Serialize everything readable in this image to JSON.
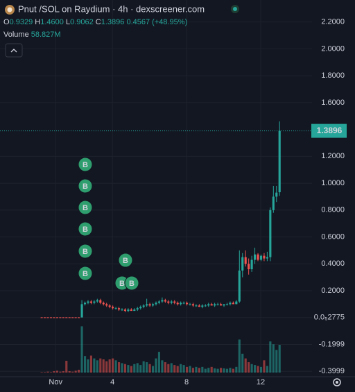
{
  "chart_data": {
    "type": "candlestick",
    "title": "Pnut /SOL on Raydium · 4h · dexscreener.com",
    "ohlc": [
      {
        "key": "O",
        "text": "0.9329"
      },
      {
        "key": "H",
        "text": "1.4600"
      },
      {
        "key": "L",
        "text": "0.9062"
      },
      {
        "key": "C",
        "text": "1.3896"
      }
    ],
    "change": "0.4567 (+48.95%)",
    "volume_title": "Volume",
    "volume_text": "58.827M",
    "marker_label": "B",
    "up_color": "#26a69a",
    "down_color": "#ef5350",
    "grid": true,
    "ylim": [
      -0.44,
      2.26
    ],
    "yticks": [
      {
        "value": 2.2,
        "label": "2.2000"
      },
      {
        "value": 2.0,
        "label": "2.0000"
      },
      {
        "value": 1.8,
        "label": "1.8000"
      },
      {
        "value": 1.6,
        "label": "1.6000"
      },
      {
        "value": 1.2,
        "label": "1.2000"
      },
      {
        "value": 1.0,
        "label": "1.0000"
      },
      {
        "value": 0.8,
        "label": "0.8000"
      },
      {
        "value": 0.6,
        "label": "0.6000"
      },
      {
        "value": 0.4,
        "label": "0.4000"
      },
      {
        "value": 0.2,
        "label": "0.2000"
      },
      {
        "value": 2.775e-06,
        "label": "0.0₅2775"
      },
      -0.1999,
      -0.3999
    ],
    "xlim": [
      -13.5,
      87.5
    ],
    "xticks": [
      {
        "value": 4.5,
        "label": "Nov"
      },
      {
        "value": 22.9,
        "label": "4"
      },
      {
        "value": 46.9,
        "label": "8"
      },
      {
        "value": 70.9,
        "label": "12"
      }
    ],
    "volume_lim": [
      0,
      150
    ],
    "candles": [
      [
        0.002,
        0.002,
        0.001,
        0.001
      ],
      [
        0.002,
        0.002,
        0.001,
        0.001
      ],
      [
        0.002,
        0.002,
        0.001,
        0.001
      ],
      [
        0.002,
        0.002,
        0.001,
        0.001
      ],
      [
        0.002,
        0.002,
        0.001,
        0.001
      ],
      [
        0.002,
        0.002,
        0.001,
        0.001
      ],
      [
        0.002,
        0.002,
        0.001,
        0.001
      ],
      [
        0.002,
        0.002,
        0.001,
        0.001
      ],
      [
        0.002,
        0.002,
        0.001,
        0.001
      ],
      [
        0.002,
        0.002,
        0.001,
        0.001
      ],
      [
        0.002,
        0.002,
        0.001,
        0.001
      ],
      [
        0.002,
        0.002,
        0.001,
        0.001
      ],
      [
        0.002,
        0.002,
        0.001,
        0.001
      ],
      [
        0.001,
        0.13,
        0.001,
        0.1
      ],
      [
        0.1,
        0.12,
        0.09,
        0.11
      ],
      [
        0.11,
        0.13,
        0.1,
        0.12
      ],
      [
        0.12,
        0.13,
        0.1,
        0.11
      ],
      [
        0.11,
        0.13,
        0.1,
        0.12
      ],
      [
        0.12,
        0.14,
        0.11,
        0.13
      ],
      [
        0.13,
        0.14,
        0.1,
        0.11
      ],
      [
        0.11,
        0.12,
        0.09,
        0.1
      ],
      [
        0.1,
        0.11,
        0.08,
        0.09
      ],
      [
        0.09,
        0.1,
        0.07,
        0.08
      ],
      [
        0.08,
        0.09,
        0.06,
        0.07
      ],
      [
        0.07,
        0.08,
        0.06,
        0.07
      ],
      [
        0.07,
        0.08,
        0.05,
        0.06
      ],
      [
        0.06,
        0.07,
        0.05,
        0.06
      ],
      [
        0.06,
        0.07,
        0.04,
        0.05
      ],
      [
        0.05,
        0.07,
        0.04,
        0.06
      ],
      [
        0.06,
        0.07,
        0.05,
        0.05
      ],
      [
        0.05,
        0.07,
        0.05,
        0.06
      ],
      [
        0.06,
        0.08,
        0.05,
        0.07
      ],
      [
        0.07,
        0.09,
        0.06,
        0.08
      ],
      [
        0.08,
        0.1,
        0.07,
        0.09
      ],
      [
        0.09,
        0.14,
        0.08,
        0.1
      ],
      [
        0.1,
        0.11,
        0.08,
        0.09
      ],
      [
        0.09,
        0.11,
        0.08,
        0.1
      ],
      [
        0.1,
        0.12,
        0.09,
        0.11
      ],
      [
        0.11,
        0.13,
        0.1,
        0.12
      ],
      [
        0.12,
        0.15,
        0.11,
        0.13
      ],
      [
        0.13,
        0.14,
        0.11,
        0.12
      ],
      [
        0.12,
        0.13,
        0.1,
        0.11
      ],
      [
        0.11,
        0.13,
        0.1,
        0.12
      ],
      [
        0.12,
        0.13,
        0.1,
        0.11
      ],
      [
        0.11,
        0.12,
        0.09,
        0.1
      ],
      [
        0.1,
        0.12,
        0.09,
        0.11
      ],
      [
        0.11,
        0.12,
        0.1,
        0.11
      ],
      [
        0.11,
        0.12,
        0.09,
        0.1
      ],
      [
        0.1,
        0.11,
        0.09,
        0.1
      ],
      [
        0.1,
        0.11,
        0.08,
        0.09
      ],
      [
        0.09,
        0.1,
        0.08,
        0.09
      ],
      [
        0.09,
        0.1,
        0.08,
        0.08
      ],
      [
        0.08,
        0.1,
        0.07,
        0.09
      ],
      [
        0.09,
        0.1,
        0.08,
        0.09
      ],
      [
        0.09,
        0.11,
        0.08,
        0.1
      ],
      [
        0.1,
        0.11,
        0.09,
        0.09
      ],
      [
        0.09,
        0.11,
        0.08,
        0.1
      ],
      [
        0.1,
        0.11,
        0.09,
        0.1
      ],
      [
        0.1,
        0.11,
        0.09,
        0.09
      ],
      [
        0.09,
        0.1,
        0.08,
        0.1
      ],
      [
        0.1,
        0.11,
        0.09,
        0.1
      ],
      [
        0.1,
        0.12,
        0.09,
        0.11
      ],
      [
        0.11,
        0.12,
        0.1,
        0.1
      ],
      [
        0.1,
        0.13,
        0.1,
        0.12
      ],
      [
        0.12,
        0.5,
        0.11,
        0.35
      ],
      [
        0.35,
        0.48,
        0.3,
        0.45
      ],
      [
        0.45,
        0.5,
        0.38,
        0.4
      ],
      [
        0.4,
        0.44,
        0.32,
        0.36
      ],
      [
        0.36,
        0.46,
        0.34,
        0.43
      ],
      [
        0.43,
        0.52,
        0.4,
        0.47
      ],
      [
        0.47,
        0.48,
        0.42,
        0.43
      ],
      [
        0.43,
        0.47,
        0.42,
        0.46
      ],
      [
        0.46,
        0.48,
        0.42,
        0.44
      ],
      [
        0.44,
        0.49,
        0.42,
        0.45
      ],
      [
        0.45,
        0.82,
        0.42,
        0.8
      ],
      [
        0.8,
        0.98,
        0.78,
        0.9
      ],
      [
        0.9,
        0.98,
        0.86,
        0.93
      ],
      [
        0.9329,
        1.46,
        0.9062,
        1.3896
      ]
    ],
    "volumes": [
      1,
      1,
      2,
      1,
      3,
      4,
      2,
      3,
      25,
      3,
      2,
      4,
      6,
      98,
      35,
      28,
      36,
      30,
      26,
      30,
      28,
      24,
      28,
      30,
      26,
      22,
      20,
      18,
      16,
      14,
      18,
      20,
      16,
      24,
      22,
      18,
      14,
      30,
      44,
      26,
      22,
      18,
      20,
      16,
      14,
      18,
      16,
      12,
      14,
      10,
      12,
      10,
      12,
      8,
      10,
      12,
      9,
      8,
      10,
      9,
      8,
      10,
      8,
      12,
      70,
      40,
      30,
      22,
      18,
      16,
      14,
      12,
      26,
      14,
      66,
      60,
      48,
      58.827
    ]
  }
}
